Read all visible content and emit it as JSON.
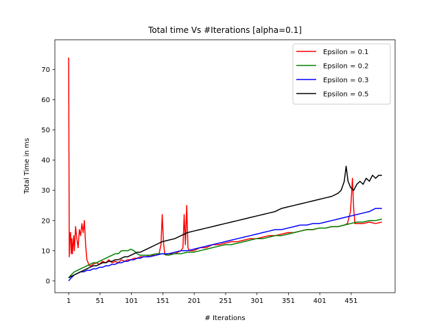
{
  "chart_data": {
    "type": "line",
    "title": "Total time Vs #Iterations [alpha=0.1]",
    "xlabel": "# Iterations",
    "ylabel": "Total Time in ms",
    "xlim": [
      -21,
      521
    ],
    "ylim": [
      -3.9,
      79.9
    ],
    "xticks": [
      1,
      51,
      101,
      151,
      201,
      251,
      301,
      351,
      401,
      451
    ],
    "yticks": [
      0,
      10,
      20,
      30,
      40,
      50,
      60,
      70
    ],
    "grid": false,
    "legend_position": "upper right",
    "series": [
      {
        "name": "Epsilon = 0.1",
        "color": "#ff0000",
        "x": [
          1,
          2,
          3,
          4,
          5,
          6,
          7,
          8,
          9,
          10,
          12,
          14,
          16,
          18,
          20,
          22,
          24,
          26,
          28,
          30,
          32,
          34,
          36,
          40,
          45,
          50,
          55,
          60,
          65,
          70,
          75,
          80,
          85,
          90,
          95,
          100,
          105,
          110,
          115,
          120,
          125,
          130,
          135,
          140,
          145,
          148,
          150,
          152,
          154,
          156,
          160,
          165,
          170,
          175,
          180,
          183,
          185,
          187,
          189,
          191,
          193,
          195,
          200,
          210,
          220,
          230,
          240,
          250,
          260,
          270,
          280,
          290,
          300,
          310,
          320,
          330,
          340,
          350,
          360,
          370,
          380,
          390,
          400,
          410,
          420,
          430,
          440,
          445,
          450,
          453,
          455,
          457,
          460,
          470,
          480,
          490,
          500
        ],
        "y": [
          74,
          8,
          16,
          16,
          9,
          14,
          9,
          12,
          15,
          10,
          18,
          14,
          11,
          17,
          15,
          19,
          16,
          20,
          12,
          7,
          6,
          5,
          5,
          5.5,
          6,
          5.5,
          6.5,
          6,
          7,
          6,
          6.5,
          6,
          7,
          6.5,
          7,
          7,
          7.5,
          7.5,
          8,
          8,
          8,
          8.5,
          8.5,
          8.5,
          9,
          12,
          22,
          13,
          9,
          8.5,
          9,
          9,
          9,
          9.5,
          10,
          11,
          22,
          12,
          25,
          11,
          10,
          10,
          10,
          11,
          11,
          12,
          12,
          12.5,
          13,
          13,
          13.5,
          14,
          14,
          14.5,
          15,
          15,
          15.5,
          16,
          16,
          16.5,
          17,
          17,
          17.5,
          17.5,
          18,
          18,
          18.5,
          19,
          23,
          34,
          24,
          19,
          19,
          19,
          19.5,
          19,
          19.5
        ]
      },
      {
        "name": "Epsilon = 0.2",
        "color": "#008000",
        "x": [
          1,
          5,
          10,
          15,
          20,
          25,
          30,
          35,
          40,
          45,
          50,
          55,
          60,
          65,
          70,
          75,
          80,
          85,
          90,
          95,
          100,
          105,
          110,
          115,
          120,
          130,
          140,
          150,
          160,
          170,
          180,
          190,
          200,
          210,
          220,
          230,
          240,
          250,
          260,
          270,
          280,
          290,
          300,
          310,
          320,
          330,
          340,
          350,
          360,
          370,
          380,
          390,
          400,
          410,
          420,
          430,
          440,
          450,
          460,
          470,
          480,
          490,
          500
        ],
        "y": [
          1,
          2,
          3,
          3.5,
          4,
          4.5,
          5,
          5.5,
          6,
          6,
          6.5,
          7,
          7.5,
          8,
          8.5,
          9,
          9,
          10,
          10,
          10,
          10.5,
          10,
          9,
          8.5,
          8.5,
          8.5,
          9,
          9,
          8.5,
          9,
          9,
          9.5,
          9.5,
          10,
          10.5,
          11,
          11.5,
          12,
          12,
          12.5,
          13,
          13.5,
          14,
          14,
          14.5,
          15,
          15,
          15.5,
          16,
          16.5,
          17,
          17,
          17.5,
          17.5,
          18,
          18,
          18.5,
          19,
          19.5,
          19.5,
          20,
          20,
          20.5
        ]
      },
      {
        "name": "Epsilon = 0.3",
        "color": "#0000ff",
        "x": [
          1,
          5,
          10,
          15,
          20,
          25,
          30,
          35,
          40,
          45,
          50,
          55,
          60,
          65,
          70,
          75,
          80,
          85,
          90,
          95,
          100,
          105,
          110,
          115,
          120,
          130,
          140,
          150,
          160,
          170,
          180,
          190,
          200,
          210,
          220,
          230,
          240,
          250,
          260,
          270,
          280,
          290,
          300,
          310,
          320,
          330,
          340,
          350,
          360,
          370,
          380,
          390,
          400,
          410,
          420,
          430,
          440,
          450,
          460,
          470,
          480,
          490,
          500
        ],
        "y": [
          0,
          1,
          2,
          2.5,
          3,
          3,
          3.5,
          3.5,
          4,
          4,
          4.5,
          4.5,
          5,
          5,
          5.5,
          5.5,
          6,
          6,
          6.5,
          6.5,
          7,
          7,
          7.5,
          7.5,
          8,
          8,
          8.5,
          9,
          9,
          9.5,
          10,
          10,
          10.5,
          11,
          11.5,
          12,
          12.5,
          13,
          13.5,
          14,
          14.5,
          15,
          15.5,
          16,
          16.5,
          17,
          17,
          17.5,
          18,
          18.5,
          18.5,
          19,
          19,
          19.5,
          20,
          20.5,
          21,
          21.5,
          22,
          22.5,
          23,
          24,
          24
        ]
      },
      {
        "name": "Epsilon = 0.5",
        "color": "#000000",
        "x": [
          1,
          5,
          10,
          15,
          20,
          25,
          30,
          35,
          40,
          45,
          50,
          55,
          60,
          65,
          70,
          75,
          80,
          85,
          90,
          95,
          100,
          105,
          110,
          115,
          120,
          130,
          140,
          150,
          160,
          170,
          180,
          190,
          200,
          210,
          220,
          230,
          240,
          250,
          260,
          270,
          280,
          290,
          300,
          310,
          320,
          330,
          340,
          350,
          360,
          370,
          380,
          390,
          400,
          410,
          420,
          430,
          435,
          440,
          443,
          446,
          450,
          455,
          460,
          465,
          470,
          475,
          480,
          485,
          490,
          495,
          500
        ],
        "y": [
          1,
          1.5,
          2,
          2.5,
          3,
          3.5,
          4,
          4.5,
          5,
          5,
          5.5,
          6,
          6,
          6.5,
          6.5,
          7,
          7,
          7.5,
          8,
          8,
          8.5,
          9,
          9.5,
          9.5,
          10,
          11,
          12,
          13,
          13.5,
          14,
          15,
          16,
          16.5,
          17,
          17.5,
          18,
          18.5,
          19,
          19.5,
          20,
          20.5,
          21,
          21.5,
          22,
          22.5,
          23,
          24,
          24.5,
          25,
          25.5,
          26,
          26.5,
          27,
          27.5,
          28,
          29,
          30,
          33,
          38,
          33,
          31,
          30,
          32,
          33,
          32,
          34,
          33,
          35,
          34,
          35,
          35
        ]
      }
    ]
  }
}
